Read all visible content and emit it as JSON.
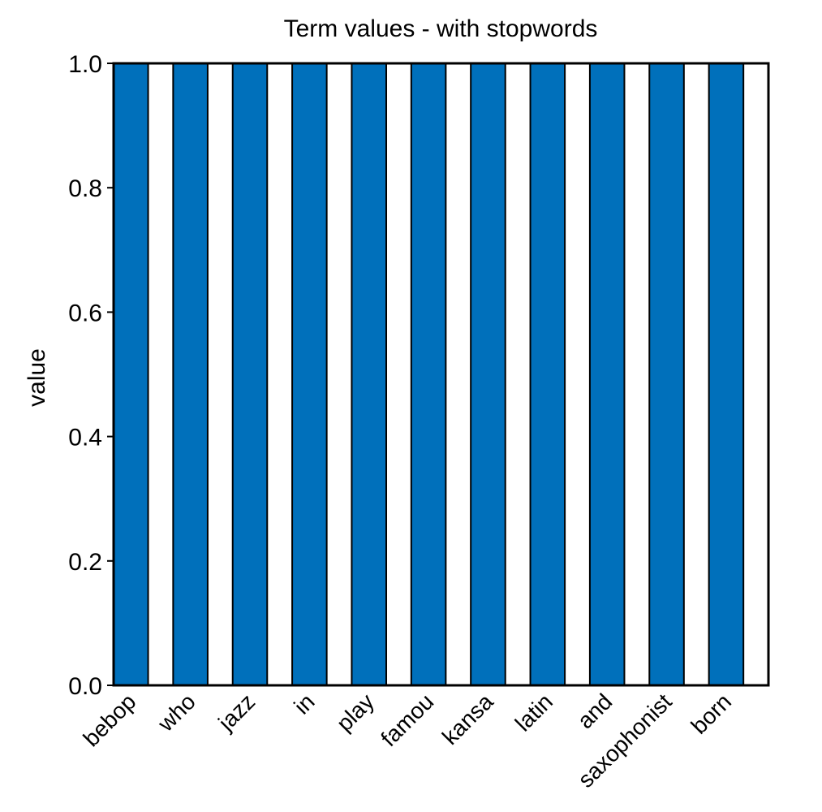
{
  "chart_data": {
    "type": "bar",
    "title": "Term values - with stopwords",
    "xlabel": "",
    "ylabel": "value",
    "ylim": [
      0.0,
      1.0
    ],
    "yticks": [
      "0.0",
      "0.2",
      "0.4",
      "0.6",
      "0.8",
      "1.0"
    ],
    "categories": [
      "bebop",
      "who",
      "jazz",
      "in",
      "play",
      "famou",
      "kansa",
      "latin",
      "and",
      "saxophonist",
      "born"
    ],
    "values": [
      1.0,
      1.0,
      1.0,
      1.0,
      1.0,
      1.0,
      1.0,
      1.0,
      1.0,
      1.0,
      1.0
    ],
    "bar_color": "#0070bb",
    "edge_color": "#000000",
    "grid": false,
    "legend": "none"
  }
}
